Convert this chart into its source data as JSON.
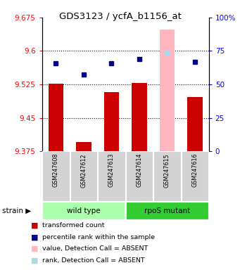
{
  "title": "GDS3123 / ycfA_b1156_at",
  "samples": [
    "GSM247608",
    "GSM247612",
    "GSM247613",
    "GSM247614",
    "GSM247615",
    "GSM247616"
  ],
  "red_values": [
    9.526,
    9.395,
    9.508,
    9.528,
    9.648,
    9.497
  ],
  "blue_values": [
    9.572,
    9.547,
    9.572,
    9.582,
    9.596,
    9.575
  ],
  "absent_mask": [
    false,
    false,
    false,
    false,
    true,
    false
  ],
  "ylim_left": [
    9.375,
    9.675
  ],
  "ylim_right": [
    0,
    100
  ],
  "yticks_left": [
    9.375,
    9.45,
    9.525,
    9.6,
    9.675
  ],
  "yticks_right": [
    0,
    25,
    50,
    75,
    100
  ],
  "ytick_labels_left": [
    "9.375",
    "9.45",
    "9.525",
    "9.6",
    "9.675"
  ],
  "ytick_labels_right": [
    "0",
    "25",
    "50",
    "75",
    "100%"
  ],
  "bar_color_present": "#cc0000",
  "bar_color_absent": "#ffb6c1",
  "blue_color_present": "#00008b",
  "blue_color_absent": "#add8e6",
  "baseline": 9.375,
  "group_label": "strain",
  "grid_lines": [
    9.6,
    9.525,
    9.45
  ],
  "group_info": [
    {
      "xmin": -0.48,
      "xmax": 2.48,
      "label": "wild type",
      "color": "#aaffaa"
    },
    {
      "xmin": 2.52,
      "xmax": 5.48,
      "label": "rpoS mutant",
      "color": "#33cc33"
    }
  ],
  "legend_items": [
    {
      "color": "#cc0000",
      "label": "transformed count"
    },
    {
      "color": "#00008b",
      "label": "percentile rank within the sample"
    },
    {
      "color": "#ffb6c1",
      "label": "value, Detection Call = ABSENT"
    },
    {
      "color": "#add8e6",
      "label": "rank, Detection Call = ABSENT"
    }
  ]
}
